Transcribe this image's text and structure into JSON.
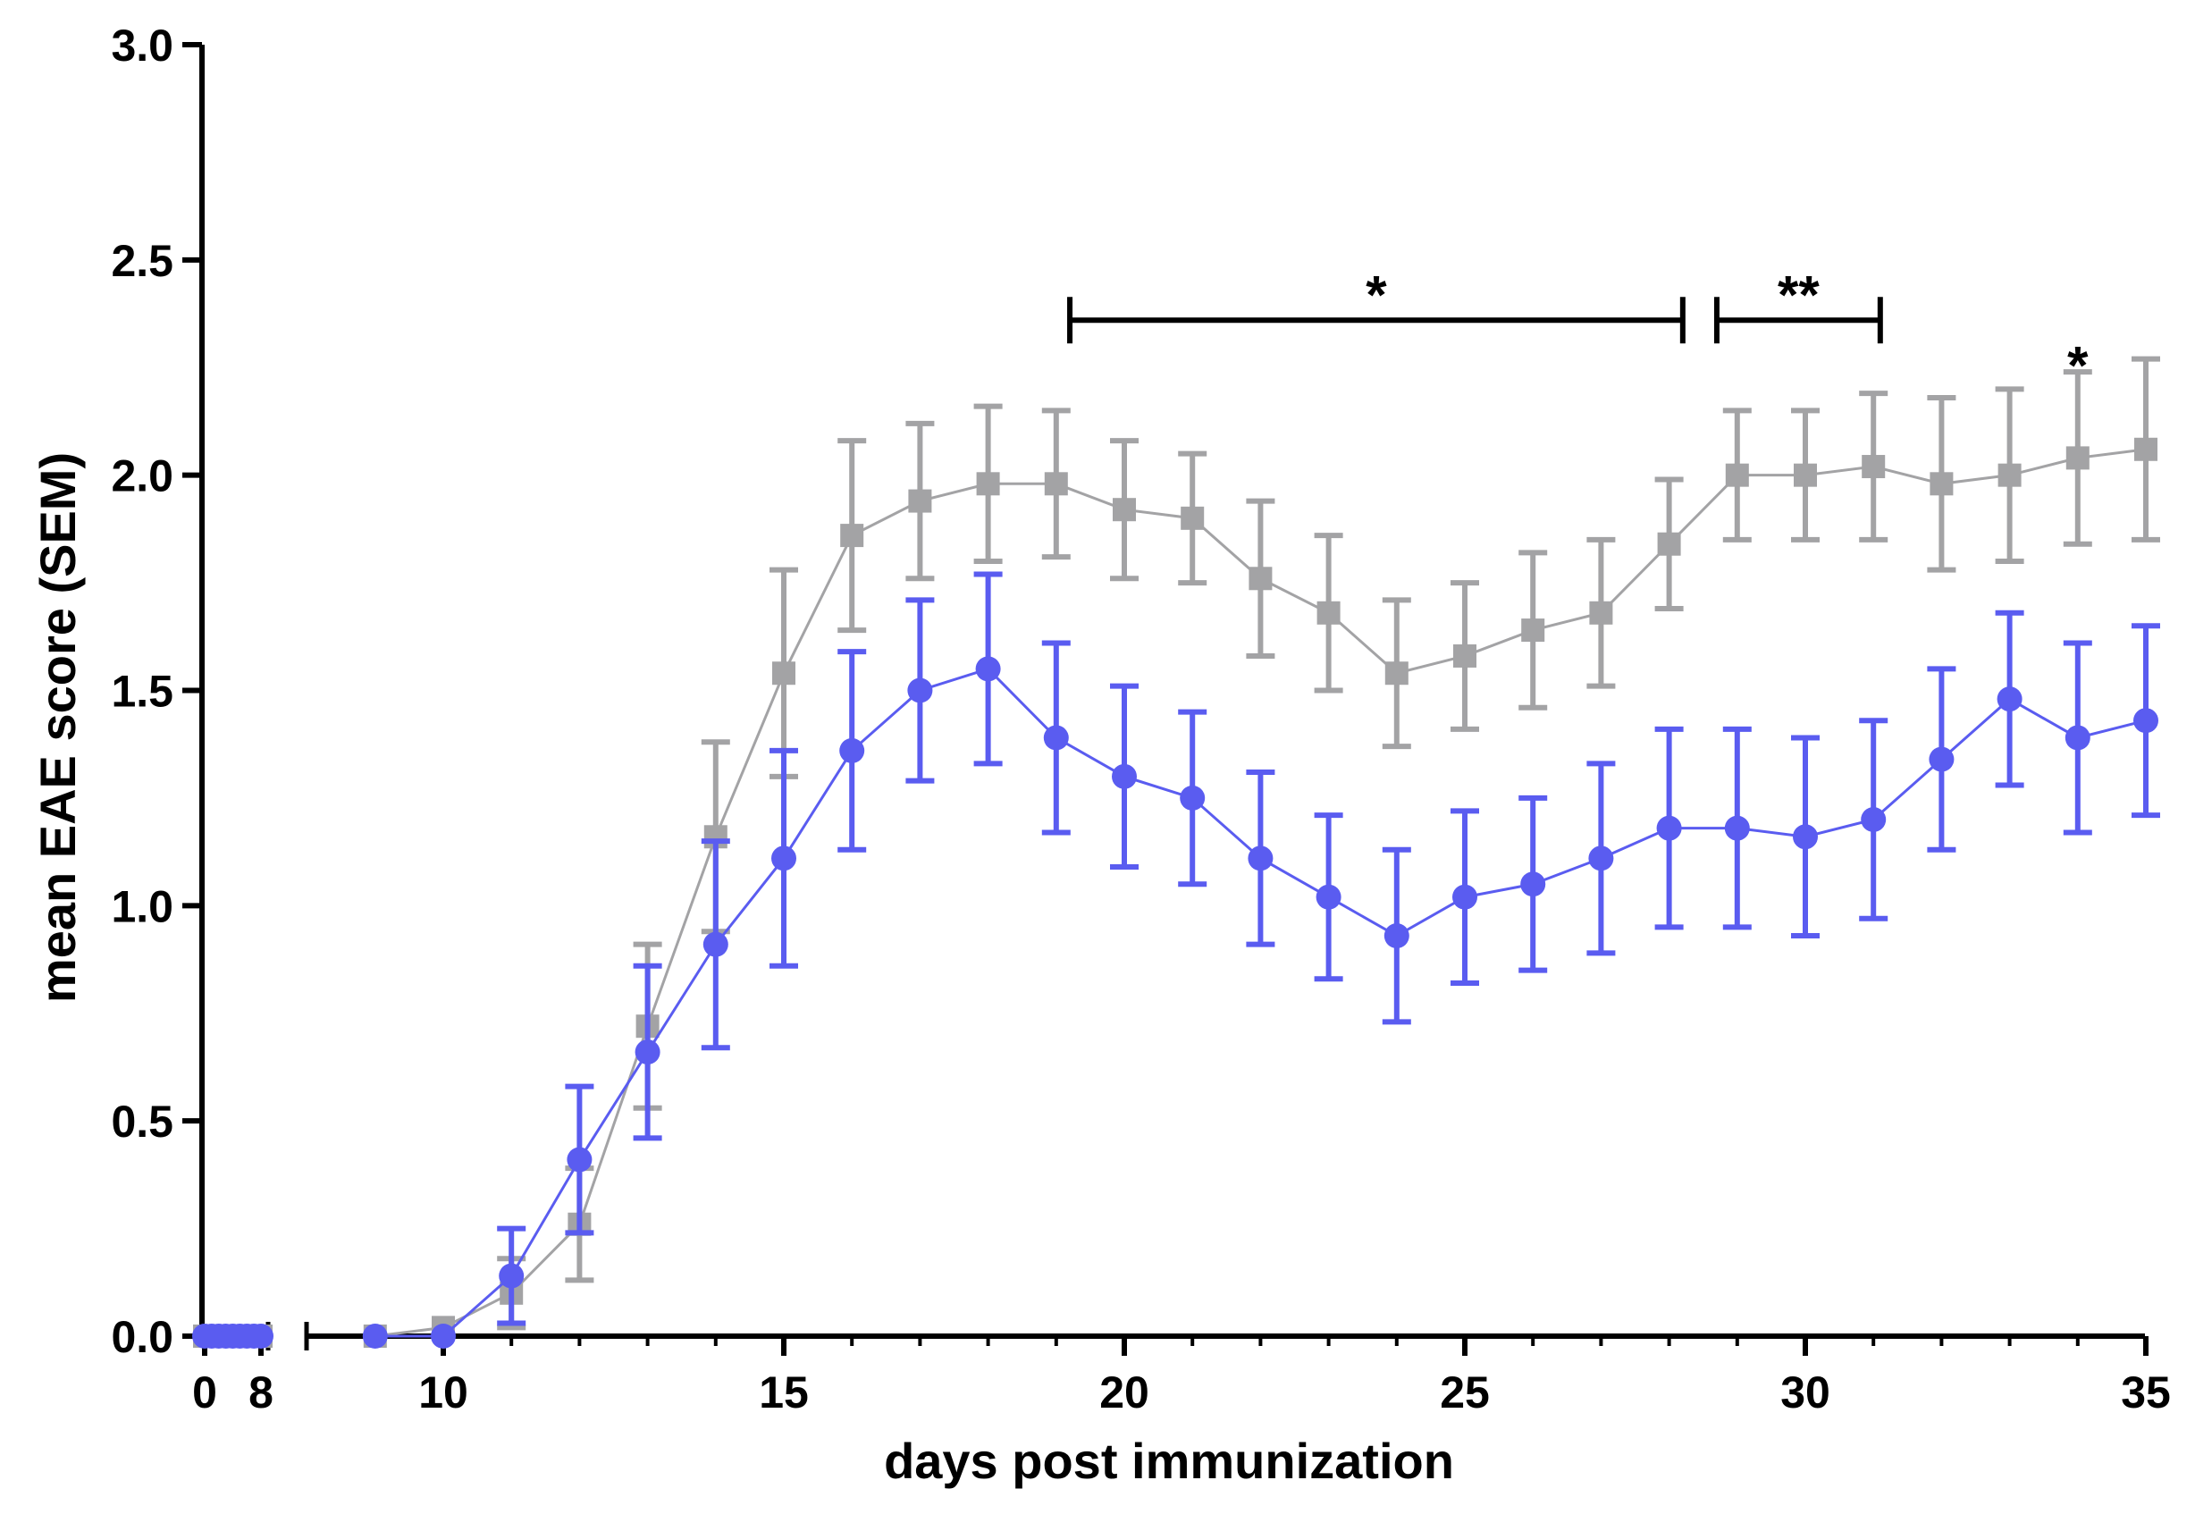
{
  "chart_data": {
    "type": "line",
    "title": "",
    "xlabel": "days post immunization",
    "ylabel": "mean EAE score (SEM)",
    "ylim": [
      0,
      3
    ],
    "y_ticks": [
      "0.0",
      "0.5",
      "1.0",
      "1.5",
      "2.0",
      "2.5",
      "3.0"
    ],
    "x_ticks_left": [
      "0",
      "8"
    ],
    "x_ticks_right": [
      "10",
      "15",
      "20",
      "25",
      "30",
      "35"
    ],
    "x_axis_break": [
      8,
      9
    ],
    "series": [
      {
        "name": "gray",
        "color": "#a3a3a5",
        "marker": "square",
        "x": [
          0,
          1,
          2,
          3,
          4,
          5,
          6,
          7,
          8,
          9,
          10,
          11,
          12,
          13,
          14,
          15,
          16,
          17,
          18,
          19,
          20,
          21,
          22,
          23,
          24,
          25,
          26,
          27,
          28,
          29,
          30,
          31,
          32,
          33,
          34,
          35
        ],
        "values": [
          0,
          0,
          0,
          0,
          0,
          0,
          0,
          0,
          0,
          0,
          0.02,
          0.1,
          0.26,
          0.72,
          1.16,
          1.54,
          1.86,
          1.94,
          1.98,
          1.98,
          1.92,
          1.9,
          1.76,
          1.68,
          1.54,
          1.58,
          1.64,
          1.68,
          1.84,
          2.0,
          2.0,
          2.02,
          1.98,
          2.0,
          2.04,
          2.06
        ],
        "sem": [
          0,
          0,
          0,
          0,
          0,
          0,
          0,
          0,
          0,
          0,
          0,
          0.08,
          0.13,
          0.19,
          0.22,
          0.24,
          0.22,
          0.18,
          0.18,
          0.17,
          0.16,
          0.15,
          0.18,
          0.18,
          0.17,
          0.17,
          0.18,
          0.17,
          0.15,
          0.15,
          0.15,
          0.17,
          0.2,
          0.2,
          0.2,
          0.21
        ]
      },
      {
        "name": "blue",
        "color": "#5a5cf0",
        "marker": "circle",
        "x": [
          0,
          1,
          2,
          3,
          4,
          5,
          6,
          7,
          8,
          9,
          10,
          11,
          12,
          13,
          14,
          15,
          16,
          17,
          18,
          19,
          20,
          21,
          22,
          23,
          24,
          25,
          26,
          27,
          28,
          29,
          30,
          31,
          32,
          33,
          34,
          35
        ],
        "values": [
          0,
          0,
          0,
          0,
          0,
          0,
          0,
          0,
          0,
          0,
          0,
          0.14,
          0.41,
          0.66,
          0.91,
          1.11,
          1.36,
          1.5,
          1.55,
          1.39,
          1.3,
          1.25,
          1.11,
          1.02,
          0.93,
          1.02,
          1.05,
          1.11,
          1.18,
          1.18,
          1.16,
          1.2,
          1.34,
          1.48,
          1.39,
          1.43
        ],
        "sem": [
          0,
          0,
          0,
          0,
          0,
          0,
          0,
          0,
          0,
          0,
          0,
          0.11,
          0.17,
          0.2,
          0.24,
          0.25,
          0.23,
          0.21,
          0.22,
          0.22,
          0.21,
          0.2,
          0.2,
          0.19,
          0.2,
          0.2,
          0.2,
          0.22,
          0.23,
          0.23,
          0.23,
          0.23,
          0.21,
          0.2,
          0.22,
          0.22
        ]
      }
    ],
    "annotations": [
      {
        "type": "bracket",
        "x_start": 19.2,
        "x_end": 28.2,
        "y": 2.36,
        "label": "*"
      },
      {
        "type": "bracket",
        "x_start": 28.7,
        "x_end": 31.1,
        "y": 2.36,
        "label": "**"
      },
      {
        "type": "star",
        "x": 34,
        "y": 2.27,
        "label": "*"
      }
    ]
  }
}
